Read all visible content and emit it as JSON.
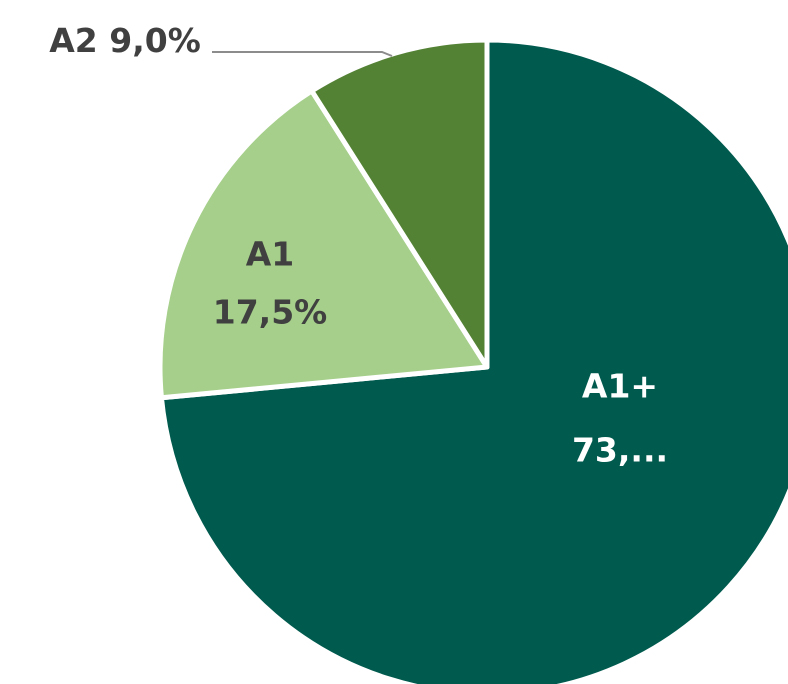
{
  "chart_data": {
    "type": "pie",
    "categories": [
      "A1+",
      "A1",
      "A2"
    ],
    "values": [
      73.5,
      17.5,
      9.0
    ],
    "value_labels": [
      "73,...",
      "17,5%",
      "9,0%"
    ],
    "colors": [
      "#005a4e",
      "#a5cf8a",
      "#548235"
    ]
  }
}
